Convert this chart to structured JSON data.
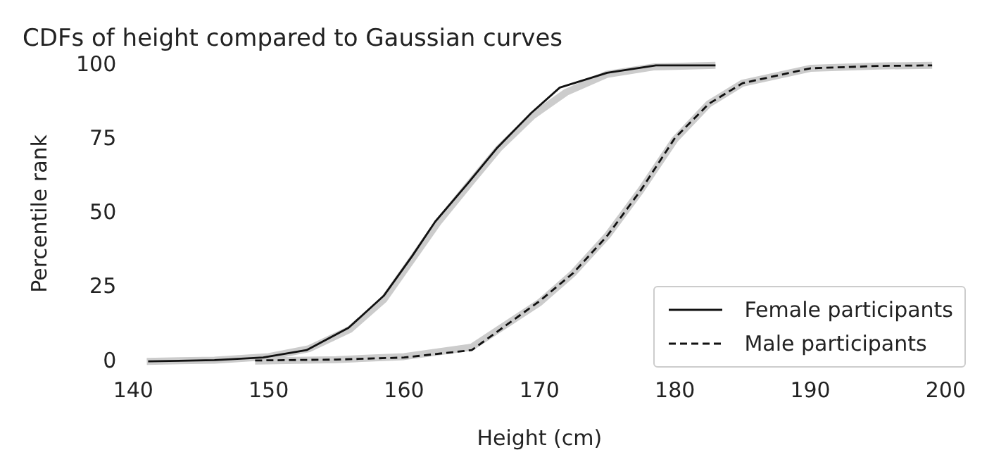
{
  "chart_data": {
    "type": "line",
    "title": "CDFs of height compared to Gaussian curves",
    "xlabel": "Height (cm)",
    "ylabel": "Percentile rank",
    "xlim": [
      140,
      200
    ],
    "xticks": [
      140,
      150,
      160,
      170,
      180,
      190,
      200
    ],
    "ylim": [
      0,
      100
    ],
    "yticks": [
      0,
      25,
      50,
      75,
      100
    ],
    "grid": false,
    "legend": "bottom right",
    "marker": "none",
    "series": [
      {
        "color": "#cccccc",
        "x": [
          141,
          146,
          150,
          153,
          156,
          158.5,
          160.5,
          162.5,
          165,
          167,
          169.5,
          172,
          175,
          178.5,
          183
        ],
        "values": [
          0.2,
          0.6,
          1.8,
          4.5,
          11,
          21,
          34,
          47,
          61,
          72,
          83,
          91,
          97,
          99.5,
          100
        ]
      },
      {
        "color": "#cccccc",
        "x": [
          149,
          155,
          160,
          165,
          170,
          172.5,
          175,
          177.5,
          180,
          182.5,
          185,
          190,
          195,
          199
        ],
        "values": [
          0.3,
          0.8,
          1.8,
          5,
          20,
          30,
          42.5,
          58,
          75,
          87,
          94,
          99,
          99.8,
          100
        ]
      },
      {
        "name": "Female participants",
        "color": "#111111",
        "line_style": "solid",
        "x": [
          141.1,
          146,
          149.6,
          152.8,
          155.9,
          158.5,
          160.6,
          162.3,
          164.8,
          166.9,
          169.4,
          171.5,
          175,
          178.6,
          182.5,
          183
        ],
        "values": [
          0.2,
          0.6,
          1.5,
          4,
          11.5,
          22.3,
          35.7,
          47.3,
          60.7,
          72.3,
          84,
          92.5,
          97.5,
          100,
          100,
          100
        ]
      },
      {
        "name": "Male participants",
        "color": "#111111",
        "line_style": "dashed",
        "x": [
          149,
          155,
          160,
          165,
          170,
          172.5,
          175,
          177.5,
          180,
          182.5,
          185,
          190,
          195,
          199
        ],
        "values": [
          0.5,
          0.8,
          1.5,
          4,
          20.5,
          30,
          42.5,
          58,
          75.5,
          87,
          94,
          99,
          99.8,
          100
        ]
      }
    ]
  }
}
